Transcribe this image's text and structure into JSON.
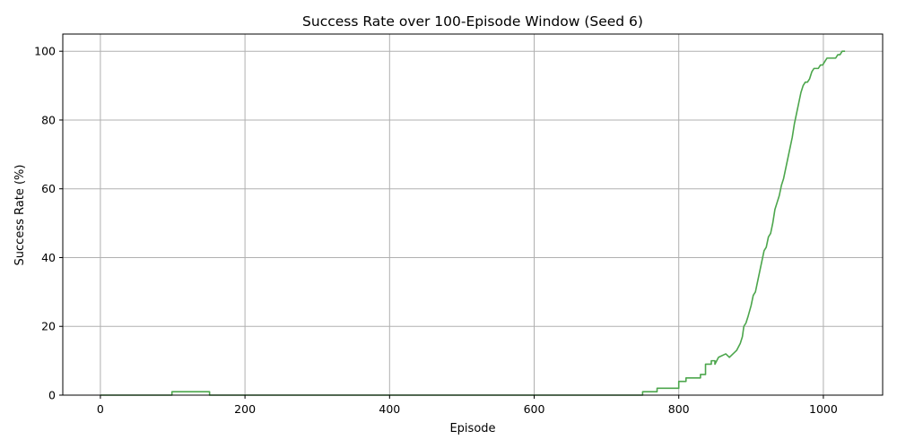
{
  "chart_data": {
    "type": "line",
    "title": "Success Rate over 100-Episode Window (Seed 6)",
    "xlabel": "Episode",
    "ylabel": "Success Rate (%)",
    "xlim": [
      -52,
      1082
    ],
    "ylim": [
      0,
      105
    ],
    "xticks": [
      0,
      200,
      400,
      600,
      800,
      1000
    ],
    "yticks": [
      0,
      20,
      40,
      60,
      80,
      100
    ],
    "grid": true,
    "series": [
      {
        "color": "#4ca64c",
        "x": [
          0,
          99,
          99,
          151,
          151,
          750,
          750,
          770,
          770,
          800,
          800,
          810,
          810,
          830,
          830,
          837,
          837,
          845,
          845,
          850,
          850,
          855,
          855,
          865,
          865,
          870,
          870,
          875,
          875,
          880,
          880,
          885,
          885,
          888,
          890,
          893,
          896,
          900,
          903,
          906,
          909,
          912,
          915,
          918,
          921,
          924,
          927,
          930,
          933,
          936,
          939,
          942,
          945,
          948,
          951,
          954,
          957,
          960,
          963,
          966,
          969,
          972,
          975,
          978,
          981,
          984,
          987,
          990,
          993,
          996,
          999,
          1002,
          1005,
          1008,
          1011,
          1014,
          1017,
          1020,
          1023,
          1026,
          1028,
          1030
        ],
        "y": [
          0,
          0,
          1,
          1,
          0,
          0,
          1,
          1,
          2,
          2,
          4,
          4,
          5,
          5,
          6,
          6,
          9,
          9,
          10,
          10,
          9,
          11,
          11,
          12,
          12,
          11,
          11,
          12,
          12,
          13,
          13,
          15,
          15,
          17,
          20,
          21,
          23,
          26,
          29,
          30,
          33,
          36,
          39,
          42,
          43,
          46,
          47,
          50,
          54,
          56,
          58,
          61,
          63,
          66,
          69,
          72,
          75,
          79,
          82,
          85,
          88,
          90,
          91,
          91,
          92,
          94,
          95,
          95,
          95,
          96,
          96,
          97,
          98,
          98,
          98,
          98,
          98,
          99,
          99,
          100,
          100,
          100
        ]
      }
    ]
  }
}
